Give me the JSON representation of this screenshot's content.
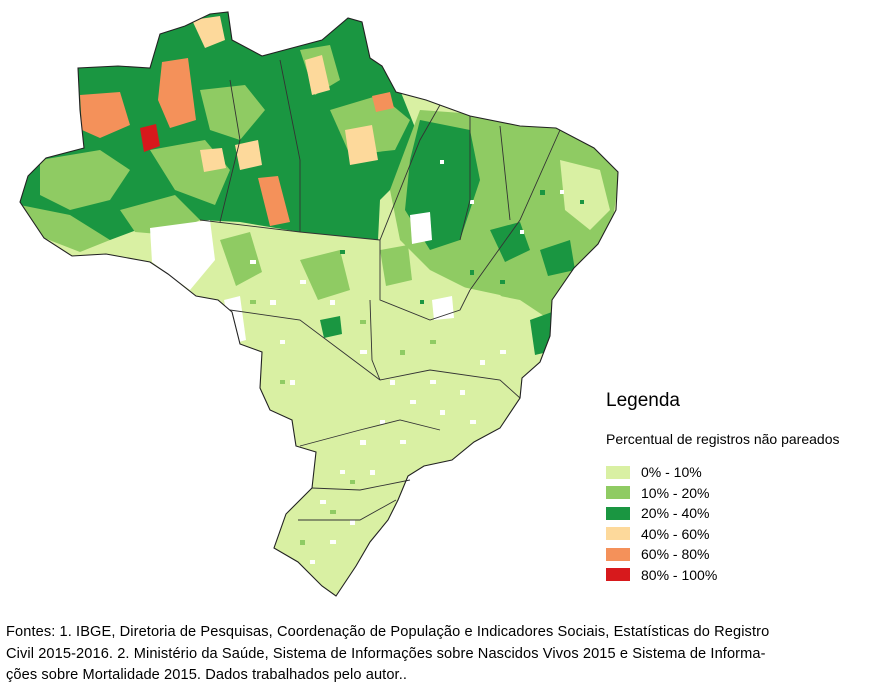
{
  "legend": {
    "title": "Legenda",
    "subtitle": "Percentual de registros não pareados",
    "classes": [
      {
        "label": "0% - 10%",
        "color": "#d9f0a3"
      },
      {
        "label": "10% - 20%",
        "color": "#8fcb63"
      },
      {
        "label": "20% - 40%",
        "color": "#1a9641"
      },
      {
        "label": "40% - 60%",
        "color": "#fdd99b"
      },
      {
        "label": "60% - 80%",
        "color": "#f4915a"
      },
      {
        "label": "80% - 100%",
        "color": "#d7191c"
      }
    ],
    "no_data_color": "#ffffff"
  },
  "source_note": {
    "lines": [
      "Fontes: 1. IBGE, Diretoria de Pesquisas, Coordenação de População e Indicadores Sociais, Estatísticas do Registro",
      "Civil 2015-2016. 2. Ministério da Saúde, Sistema de Informações sobre Nascidos Vivos 2015 e Sistema de Informa-",
      "ções sobre Mortalidade 2015. Dados trabalhados pelo autor.."
    ]
  }
}
